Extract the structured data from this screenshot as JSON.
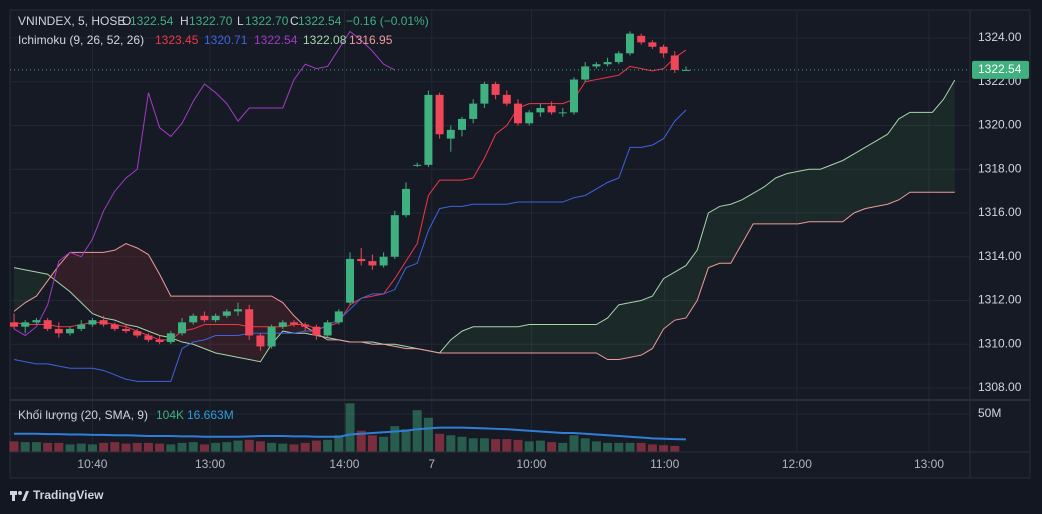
{
  "header": {
    "symbol": "VNINDEX, 5, HOSE",
    "o": "O",
    "h": "H",
    "l": "L",
    "c": "C",
    "open": 1322.54,
    "high": {
      "value": 1322.7,
      "label": "1322.70"
    },
    "low": {
      "value": 1322.7,
      "label": "1322.70"
    },
    "close": 1322.54,
    "change": "−0.16 (−0.01%)",
    "indicator": "Ichimoku (9, 26, 52, 26)",
    "volume_label": "Khối lượng (20, SMA, 9)",
    "volume_legend": [
      "104K",
      "16.663M"
    ],
    "brand": "TradingView"
  },
  "chart_data": {
    "type": "candlestick",
    "xlim": [
      -0.36,
      85.36
    ],
    "xticks": [
      {
        "value": 7,
        "label": "10:40"
      },
      {
        "value": 17.5,
        "label": "13:00"
      },
      {
        "value": 29.5,
        "label": "14:00"
      },
      {
        "value": 37.3,
        "label": "7"
      },
      {
        "value": 46.2,
        "label": "10:00"
      },
      {
        "value": 58.1,
        "label": "11:00"
      },
      {
        "value": 69.9,
        "label": "12:00"
      },
      {
        "value": 81.7,
        "label": "13:00"
      }
    ],
    "ylim": [
      1307.45,
      1325.28
    ],
    "yticks": [
      {
        "value": 1308,
        "label": "1308.00"
      },
      {
        "value": 1310,
        "label": "1310.00"
      },
      {
        "value": 1312,
        "label": "1312.00"
      },
      {
        "value": 1314,
        "label": "1314.00"
      },
      {
        "value": 1316,
        "label": "1316.00"
      },
      {
        "value": 1318,
        "label": "1318.00"
      },
      {
        "value": 1320,
        "label": "1320.00"
      },
      {
        "value": 1322,
        "label": "1322.00"
      },
      {
        "value": 1324,
        "label": "1324.00"
      }
    ],
    "grid": true,
    "up_color": "#3fb07f",
    "down_color": "#f0465a",
    "last_price": 1322.54,
    "last_price_color": "#3fb07f",
    "candles": {
      "open": [
        1311.0,
        1310.8,
        1311.0,
        1311.1,
        1310.7,
        1310.5,
        1310.7,
        1310.9,
        1311.1,
        1310.9,
        1310.7,
        1310.6,
        1310.4,
        1310.2,
        1310.1,
        1310.5,
        1311.0,
        1311.3,
        1311.1,
        1311.3,
        1311.5,
        1311.6,
        1310.4,
        1309.9,
        1310.8,
        1311.0,
        1310.9,
        1310.8,
        1310.4,
        1311.0,
        1311.9,
        1313.9,
        1313.8,
        1313.6,
        1314.0,
        1315.9,
        1318.2,
        1318.2,
        1321.4,
        1319.4,
        1319.8,
        1320.3,
        1321.0,
        1321.9,
        1321.4,
        1321.0,
        1320.1,
        1320.6,
        1320.9,
        1320.6,
        1320.6,
        1322.1,
        1322.7,
        1322.8,
        1322.9,
        1323.3,
        1324.1,
        1323.8,
        1323.6,
        1323.2,
        1322.54
      ],
      "high": [
        1311.4,
        1311.1,
        1311.2,
        1311.2,
        1311.0,
        1310.8,
        1311.1,
        1311.2,
        1311.3,
        1311.0,
        1310.9,
        1310.7,
        1310.5,
        1310.4,
        1310.6,
        1311.2,
        1311.4,
        1311.5,
        1311.4,
        1311.6,
        1311.9,
        1311.8,
        1310.5,
        1310.9,
        1311.1,
        1311.1,
        1311.0,
        1310.9,
        1311.1,
        1311.6,
        1314.2,
        1314.4,
        1314.1,
        1314.2,
        1316.1,
        1317.4,
        1318.3,
        1321.6,
        1321.5,
        1320.0,
        1320.4,
        1321.2,
        1322.0,
        1322.0,
        1321.6,
        1321.2,
        1320.7,
        1321.0,
        1321.1,
        1320.8,
        1322.2,
        1322.9,
        1322.9,
        1323.1,
        1323.4,
        1324.3,
        1324.2,
        1323.9,
        1323.7,
        1323.4,
        1322.7
      ],
      "low": [
        1310.7,
        1310.5,
        1310.9,
        1310.6,
        1310.3,
        1310.4,
        1310.6,
        1310.8,
        1310.8,
        1310.6,
        1310.5,
        1310.3,
        1310.1,
        1310.0,
        1310.0,
        1310.4,
        1310.9,
        1311.0,
        1311.0,
        1311.2,
        1311.3,
        1310.2,
        1309.7,
        1309.8,
        1310.7,
        1310.8,
        1310.6,
        1310.2,
        1310.3,
        1310.9,
        1311.8,
        1313.6,
        1313.4,
        1313.5,
        1313.9,
        1315.8,
        1318.1,
        1318.1,
        1319.4,
        1318.8,
        1319.5,
        1320.1,
        1320.8,
        1321.2,
        1320.9,
        1320.0,
        1320.0,
        1320.4,
        1320.5,
        1320.4,
        1320.5,
        1322.0,
        1322.6,
        1322.7,
        1322.8,
        1323.2,
        1323.7,
        1323.5,
        1323.1,
        1322.4,
        1322.54
      ],
      "close": [
        1310.8,
        1311.0,
        1311.1,
        1310.7,
        1310.5,
        1310.7,
        1310.9,
        1311.1,
        1310.9,
        1310.7,
        1310.6,
        1310.4,
        1310.2,
        1310.1,
        1310.5,
        1311.0,
        1311.3,
        1311.1,
        1311.3,
        1311.5,
        1311.6,
        1310.4,
        1309.9,
        1310.8,
        1311.0,
        1310.9,
        1310.8,
        1310.4,
        1311.0,
        1311.5,
        1313.9,
        1313.8,
        1313.6,
        1314.0,
        1315.9,
        1317.1,
        1318.2,
        1321.4,
        1319.6,
        1319.8,
        1320.3,
        1321.0,
        1321.9,
        1321.4,
        1321.0,
        1320.1,
        1320.6,
        1320.8,
        1320.6,
        1320.6,
        1322.1,
        1322.7,
        1322.8,
        1322.9,
        1323.3,
        1324.2,
        1323.8,
        1323.6,
        1323.3,
        1322.54,
        1322.54
      ]
    },
    "lines": [
      {
        "color": "#f23645",
        "values": [
          1311.0,
          1310.9,
          1310.9,
          1310.9,
          1310.8,
          1310.8,
          1310.9,
          1311.0,
          1311.0,
          1310.9,
          1310.8,
          1310.6,
          1310.4,
          1310.2,
          1310.2,
          1310.6,
          1310.7,
          1310.9,
          1310.9,
          1310.9,
          1310.9,
          1310.8,
          1310.8,
          1310.8,
          1310.8,
          1310.9,
          1310.9,
          1310.7,
          1310.8,
          1311.0,
          1311.8,
          1312.1,
          1312.2,
          1312.3,
          1313.0,
          1313.8,
          1314.6,
          1316.8,
          1317.5,
          1317.5,
          1317.5,
          1317.6,
          1318.5,
          1319.6,
          1320.0,
          1320.8,
          1321.0,
          1321.0,
          1321.0,
          1321.0,
          1321.2,
          1322.0,
          1322.1,
          1322.2,
          1322.3,
          1322.7,
          1322.6,
          1322.5,
          1322.6,
          1323.1,
          1323.45
        ]
      },
      {
        "color": "#3f63e0",
        "values": [
          1309.3,
          1309.2,
          1309.1,
          1309.1,
          1309.0,
          1308.9,
          1308.9,
          1308.9,
          1308.8,
          1308.6,
          1308.4,
          1308.3,
          1308.3,
          1308.3,
          1308.3,
          1309.8,
          1310.1,
          1310.2,
          1310.4,
          1310.4,
          1310.4,
          1310.5,
          1310.5,
          1310.5,
          1310.5,
          1310.5,
          1310.6,
          1310.6,
          1310.9,
          1311.1,
          1311.6,
          1312.1,
          1312.3,
          1312.3,
          1312.5,
          1313.5,
          1313.7,
          1315.2,
          1316.2,
          1316.3,
          1316.3,
          1316.4,
          1316.4,
          1316.4,
          1316.4,
          1316.5,
          1316.5,
          1316.5,
          1316.5,
          1316.5,
          1316.7,
          1316.8,
          1317.1,
          1317.4,
          1317.6,
          1319.0,
          1319.0,
          1319.1,
          1319.4,
          1320.2,
          1320.71
        ]
      },
      {
        "color": "#a33bc4",
        "values": [
          1310.7,
          1310.4,
          1310.8,
          1311.8,
          1313.8,
          1314.2,
          1314.0,
          1314.8,
          1316.1,
          1317.0,
          1317.6,
          1318.0,
          1321.5,
          1319.9,
          1319.5,
          1320.1,
          1321.1,
          1321.9,
          1321.5,
          1321.0,
          1320.2,
          1320.8,
          1320.8,
          1320.8,
          1320.8,
          1322.1,
          1322.8,
          1322.6,
          1322.7,
          1323.5,
          1324.3,
          1323.9,
          1323.4,
          1322.8,
          1322.54
        ]
      }
    ],
    "cloud": {
      "up_fill": "rgba(67,160,71,0.12)",
      "down_fill": "rgba(244,67,54,0.12)",
      "a": {
        "color": "#a5d6a7",
        "values": [
          1313.5,
          1313.4,
          1313.3,
          1313.2,
          1312.8,
          1312.4,
          1311.9,
          1311.4,
          1311.2,
          1311.1,
          1310.9,
          1310.8,
          1310.6,
          1310.4,
          1310.3,
          1310.1,
          1310.0,
          1309.8,
          1309.6,
          1309.5,
          1309.4,
          1309.3,
          1309.2,
          1310.0,
          1310.6,
          1310.5,
          1310.5,
          1310.4,
          1310.3,
          1310.2,
          1310.1,
          1310.1,
          1310.1,
          1310.0,
          1310.0,
          1309.9,
          1309.8,
          1309.7,
          1309.6,
          1310.2,
          1310.6,
          1310.8,
          1310.8,
          1310.8,
          1310.8,
          1310.8,
          1310.9,
          1310.9,
          1310.9,
          1310.9,
          1310.9,
          1310.9,
          1310.9,
          1311.2,
          1311.8,
          1311.9,
          1312.0,
          1312.2,
          1313.0,
          1313.3,
          1313.6,
          1314.3,
          1316.0,
          1316.3,
          1316.4,
          1316.6,
          1316.9,
          1317.2,
          1317.6,
          1317.8,
          1317.9,
          1318.0,
          1318.0,
          1318.2,
          1318.4,
          1318.7,
          1319.0,
          1319.3,
          1319.6,
          1320.3,
          1320.6,
          1320.6,
          1320.6,
          1321.2,
          1322.08
        ]
      },
      "b": {
        "color": "#ef9a9a",
        "values": [
          1311.5,
          1311.9,
          1312.2,
          1312.9,
          1313.6,
          1314.2,
          1314.2,
          1314.2,
          1314.2,
          1314.3,
          1314.6,
          1314.4,
          1314.1,
          1313.2,
          1312.2,
          1312.2,
          1312.2,
          1312.2,
          1312.2,
          1312.2,
          1312.2,
          1312.2,
          1312.2,
          1312.2,
          1311.9,
          1311.3,
          1310.8,
          1310.5,
          1310.2,
          1310.2,
          1310.1,
          1310.1,
          1310.0,
          1310.0,
          1309.9,
          1309.8,
          1309.8,
          1309.7,
          1309.6,
          1309.6,
          1309.6,
          1309.6,
          1309.6,
          1309.6,
          1309.6,
          1309.6,
          1309.6,
          1309.6,
          1309.6,
          1309.6,
          1309.6,
          1309.6,
          1309.6,
          1309.3,
          1309.3,
          1309.4,
          1309.5,
          1309.8,
          1310.7,
          1311.1,
          1311.2,
          1312.0,
          1313.5,
          1313.7,
          1313.7,
          1314.6,
          1315.5,
          1315.5,
          1315.5,
          1315.5,
          1315.5,
          1315.6,
          1315.6,
          1315.6,
          1315.6,
          1316.0,
          1316.2,
          1316.3,
          1316.4,
          1316.6,
          1316.95,
          1316.95,
          1316.95,
          1316.95,
          1316.95
        ]
      }
    },
    "volume": {
      "up_color": "rgba(63,176,127,0.45)",
      "down_color": "rgba(240,70,90,0.45)",
      "ylim": [
        0,
        68.4
      ],
      "yticks": [
        {
          "value": 50,
          "label": "50M"
        }
      ],
      "values": [
        14,
        13,
        13,
        12,
        12,
        10,
        11,
        10,
        12,
        13,
        11,
        12,
        12,
        11,
        10,
        12,
        13,
        10,
        12,
        13,
        15,
        16,
        14,
        12,
        11,
        10,
        12,
        15,
        16,
        22,
        64,
        28,
        22,
        20,
        34,
        30,
        55,
        45,
        24,
        22,
        20,
        18,
        18,
        17,
        17,
        16,
        14,
        15,
        13,
        12,
        22,
        18,
        14,
        12,
        12,
        12,
        12,
        10,
        9,
        8,
        0.104
      ],
      "sma": {
        "color": "#2f7ed8",
        "values": [
          24,
          24,
          24,
          23.5,
          23.5,
          23,
          23,
          22.5,
          22.5,
          22,
          22,
          21.5,
          21,
          21,
          21,
          20.5,
          20.5,
          20,
          20,
          20,
          20,
          20.5,
          21,
          21,
          21,
          20.5,
          20.5,
          20,
          20,
          20,
          23,
          24,
          25,
          26,
          27,
          28,
          30,
          31,
          32,
          32,
          32,
          31.5,
          31,
          30.5,
          30,
          29,
          28,
          27,
          26,
          25,
          25,
          24,
          23,
          22,
          21,
          20,
          19,
          18,
          17.5,
          17,
          16.663
        ]
      }
    }
  }
}
